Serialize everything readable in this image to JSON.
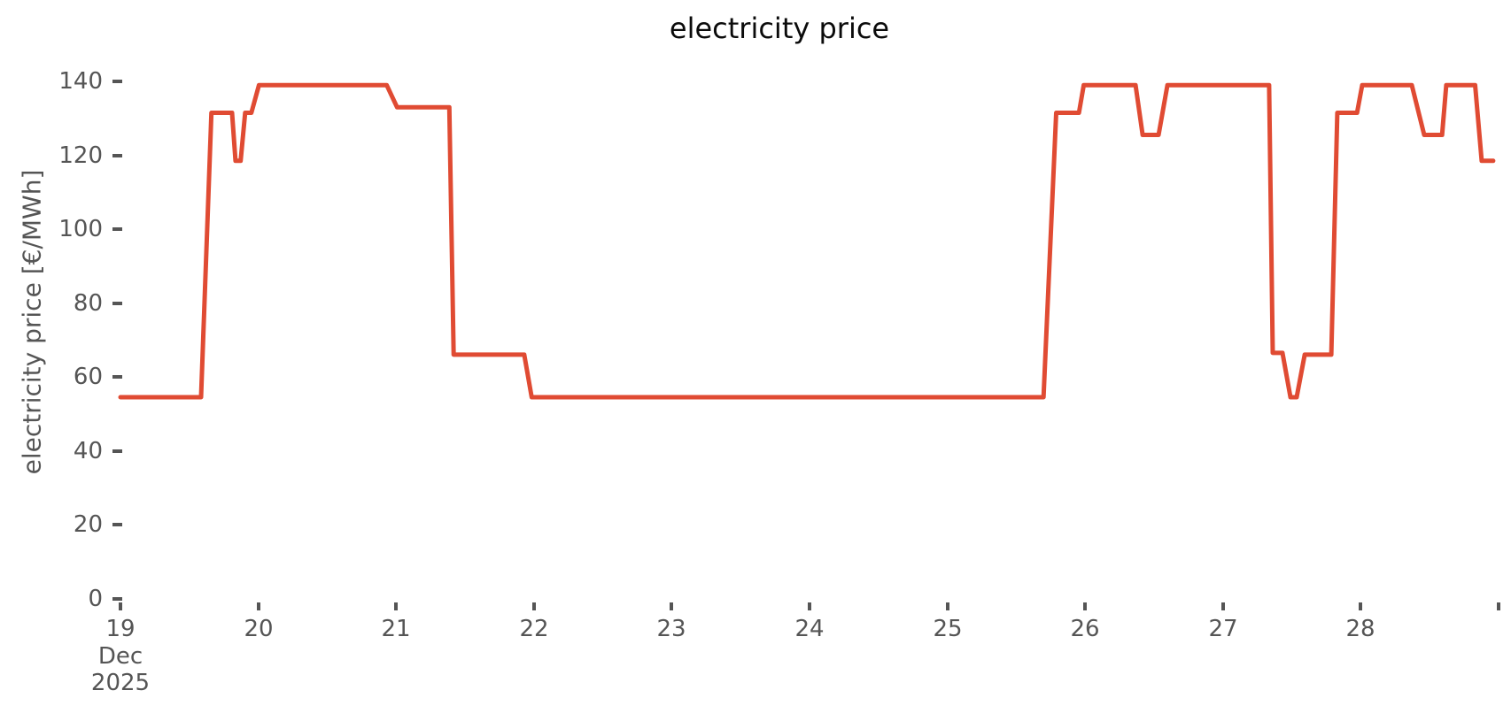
{
  "chart_data": {
    "type": "line",
    "title": "electricity price",
    "xlabel": "",
    "ylabel": "electricity price [€/MWh]",
    "grid": false,
    "legend": false,
    "line_color": "#e04b33",
    "line_width": 5,
    "xlim": [
      19,
      29
    ],
    "ylim": [
      0,
      140
    ],
    "x_axis": {
      "unit": "day of December 2025",
      "range": [
        19,
        29
      ],
      "ticks": [
        {
          "value": 19,
          "label": "19",
          "sublabels": [
            "Dec",
            "2025"
          ]
        },
        {
          "value": 20,
          "label": "20"
        },
        {
          "value": 21,
          "label": "21"
        },
        {
          "value": 22,
          "label": "22"
        },
        {
          "value": 23,
          "label": "23"
        },
        {
          "value": 24,
          "label": "24"
        },
        {
          "value": 25,
          "label": "25"
        },
        {
          "value": 26,
          "label": "26"
        },
        {
          "value": 27,
          "label": "27"
        },
        {
          "value": 28,
          "label": "28"
        },
        {
          "value": 29,
          "label": ""
        }
      ]
    },
    "y_axis": {
      "range": [
        0,
        140
      ],
      "ticks": [
        0,
        20,
        40,
        60,
        80,
        100,
        120,
        140
      ]
    },
    "series": [
      {
        "name": "electricity price",
        "points": [
          [
            19.0,
            54.5
          ],
          [
            19.585,
            54.5
          ],
          [
            19.66,
            131.5
          ],
          [
            19.81,
            131.5
          ],
          [
            19.835,
            118.5
          ],
          [
            19.872,
            118.5
          ],
          [
            19.905,
            131.5
          ],
          [
            19.95,
            131.5
          ],
          [
            20.005,
            139.0
          ],
          [
            20.932,
            139.0
          ],
          [
            21.007,
            133.0
          ],
          [
            21.386,
            133.0
          ],
          [
            21.418,
            66.0
          ],
          [
            21.93,
            66.0
          ],
          [
            21.984,
            54.5
          ],
          [
            25.698,
            54.5
          ],
          [
            25.79,
            131.5
          ],
          [
            25.955,
            131.5
          ],
          [
            25.99,
            139.0
          ],
          [
            26.366,
            139.0
          ],
          [
            26.417,
            125.5
          ],
          [
            26.533,
            125.5
          ],
          [
            26.597,
            139.0
          ],
          [
            27.335,
            139.0
          ],
          [
            27.361,
            66.5
          ],
          [
            27.432,
            66.5
          ],
          [
            27.49,
            54.5
          ],
          [
            27.535,
            54.5
          ],
          [
            27.593,
            66.0
          ],
          [
            27.786,
            66.0
          ],
          [
            27.83,
            131.5
          ],
          [
            27.973,
            131.5
          ],
          [
            28.01,
            139.0
          ],
          [
            28.37,
            139.0
          ],
          [
            28.46,
            125.5
          ],
          [
            28.59,
            125.5
          ],
          [
            28.62,
            139.0
          ],
          [
            28.83,
            139.0
          ],
          [
            28.877,
            118.5
          ],
          [
            28.961,
            118.5
          ]
        ]
      }
    ]
  }
}
